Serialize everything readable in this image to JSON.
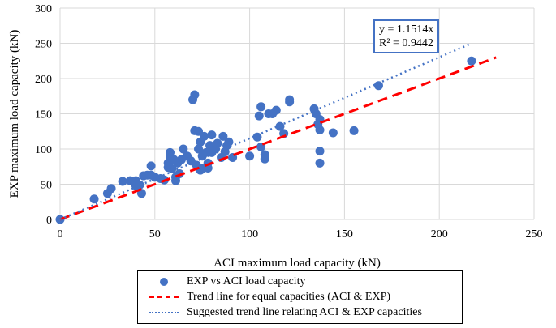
{
  "chart_data": {
    "type": "scatter",
    "title": "",
    "xlabel": "ACI maximum load capacity (kN)",
    "ylabel": "EXP maximum load capacity (kN)",
    "xlim": [
      0,
      250
    ],
    "ylim": [
      0,
      300
    ],
    "xticks": [
      0,
      50,
      100,
      150,
      200,
      250
    ],
    "yticks": [
      0,
      50,
      100,
      150,
      200,
      250,
      300
    ],
    "grid": true,
    "legend_position": "bottom",
    "series": [
      {
        "name": "EXP vs ACI load capacity",
        "type": "scatter",
        "color": "#4472c4",
        "points": [
          [
            0,
            0
          ],
          [
            18,
            29
          ],
          [
            25,
            37
          ],
          [
            27,
            44
          ],
          [
            33,
            54
          ],
          [
            37,
            55
          ],
          [
            40,
            55
          ],
          [
            40,
            48
          ],
          [
            42,
            49
          ],
          [
            43,
            37
          ],
          [
            44,
            62
          ],
          [
            46,
            63
          ],
          [
            48,
            76
          ],
          [
            48,
            63
          ],
          [
            50,
            60
          ],
          [
            53,
            58
          ],
          [
            55,
            56
          ],
          [
            57,
            74
          ],
          [
            57,
            80
          ],
          [
            58,
            95
          ],
          [
            58,
            88
          ],
          [
            59,
            72
          ],
          [
            60,
            85
          ],
          [
            61,
            60
          ],
          [
            61,
            55
          ],
          [
            62,
            80
          ],
          [
            63,
            65
          ],
          [
            64,
            85
          ],
          [
            65,
            100
          ],
          [
            67,
            90
          ],
          [
            69,
            83
          ],
          [
            70,
            170
          ],
          [
            71,
            177
          ],
          [
            71,
            126
          ],
          [
            72,
            77
          ],
          [
            73,
            100
          ],
          [
            73,
            125
          ],
          [
            74,
            110
          ],
          [
            74,
            70
          ],
          [
            75,
            72
          ],
          [
            75,
            90
          ],
          [
            76,
            118
          ],
          [
            77,
            95
          ],
          [
            78,
            80
          ],
          [
            78,
            73
          ],
          [
            79,
            105
          ],
          [
            80,
            120
          ],
          [
            80,
            95
          ],
          [
            82,
            100
          ],
          [
            83,
            108
          ],
          [
            85,
            88
          ],
          [
            86,
            118
          ],
          [
            87,
            96
          ],
          [
            88,
            105
          ],
          [
            89,
            110
          ],
          [
            91,
            88
          ],
          [
            100,
            90
          ],
          [
            104,
            117
          ],
          [
            105,
            147
          ],
          [
            106,
            160
          ],
          [
            106,
            103
          ],
          [
            108,
            92
          ],
          [
            108,
            86
          ],
          [
            110,
            150
          ],
          [
            112,
            150
          ],
          [
            114,
            155
          ],
          [
            116,
            132
          ],
          [
            118,
            122
          ],
          [
            121,
            167
          ],
          [
            121,
            170
          ],
          [
            134,
            157
          ],
          [
            135,
            150
          ],
          [
            136,
            135
          ],
          [
            137,
            142
          ],
          [
            137,
            127
          ],
          [
            137,
            97
          ],
          [
            137,
            80
          ],
          [
            144,
            123
          ],
          [
            155,
            126
          ],
          [
            168,
            190
          ],
          [
            217,
            225
          ]
        ]
      },
      {
        "name": "Trend line for equal capacities (ACI & EXP)",
        "type": "line",
        "style": "dashed",
        "color": "#ff0000",
        "slope": 1,
        "x_range": [
          0,
          230
        ]
      },
      {
        "name": "Suggested trend line relating ACI & EXP capacities",
        "type": "line",
        "style": "dotted",
        "color": "#4472c4",
        "slope": 1.1514,
        "x_range": [
          0,
          217
        ]
      }
    ],
    "annotation": {
      "equation": "y = 1.1514x",
      "r2": "R² = 0.9442"
    }
  }
}
